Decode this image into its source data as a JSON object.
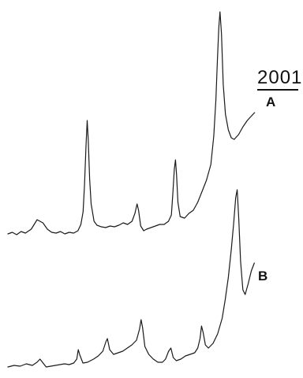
{
  "chart_data": {
    "type": "line",
    "title": "",
    "xlabel": "",
    "ylabel": "",
    "grid": false,
    "scale_label": "2001",
    "series": [
      {
        "name": "A",
        "points": [
          [
            0,
            0
          ],
          [
            3,
            2
          ],
          [
            6,
            -1
          ],
          [
            9,
            3
          ],
          [
            12,
            1
          ],
          [
            16,
            6
          ],
          [
            20,
            18
          ],
          [
            24,
            14
          ],
          [
            27,
            6
          ],
          [
            30,
            2
          ],
          [
            33,
            1
          ],
          [
            36,
            3
          ],
          [
            39,
            0
          ],
          [
            42,
            2
          ],
          [
            45,
            1
          ],
          [
            48,
            4
          ],
          [
            50,
            12
          ],
          [
            51.5,
            28
          ],
          [
            52.5,
            62
          ],
          [
            53.5,
            112
          ],
          [
            54.3,
            144
          ],
          [
            55,
            120
          ],
          [
            56,
            70
          ],
          [
            57,
            38
          ],
          [
            59,
            16
          ],
          [
            61,
            11
          ],
          [
            64,
            9
          ],
          [
            67,
            8
          ],
          [
            70,
            10
          ],
          [
            73,
            9
          ],
          [
            76,
            11
          ],
          [
            79,
            14
          ],
          [
            82,
            12
          ],
          [
            85,
            16
          ],
          [
            87,
            26
          ],
          [
            88.5,
            38
          ],
          [
            89.5,
            30
          ],
          [
            91,
            10
          ],
          [
            93,
            4
          ],
          [
            95,
            6
          ],
          [
            98,
            8
          ],
          [
            101,
            10
          ],
          [
            104,
            12
          ],
          [
            107,
            12
          ],
          [
            110,
            16
          ],
          [
            112,
            24
          ],
          [
            113,
            52
          ],
          [
            114,
            82
          ],
          [
            114.8,
            94
          ],
          [
            115.5,
            76
          ],
          [
            116.5,
            40
          ],
          [
            118,
            22
          ],
          [
            121,
            20
          ],
          [
            124,
            26
          ],
          [
            127,
            30
          ],
          [
            130,
            40
          ],
          [
            133,
            54
          ],
          [
            136,
            68
          ],
          [
            139,
            88
          ],
          [
            141,
            124
          ],
          [
            142.5,
            170
          ],
          [
            143.5,
            220
          ],
          [
            144.5,
            262
          ],
          [
            145.3,
            282
          ],
          [
            146.3,
            254
          ],
          [
            147.5,
            190
          ],
          [
            149,
            152
          ],
          [
            151,
            132
          ],
          [
            153,
            122
          ],
          [
            155,
            120
          ],
          [
            158,
            126
          ],
          [
            161,
            136
          ],
          [
            164,
            144
          ],
          [
            167,
            150
          ],
          [
            169,
            154
          ]
        ]
      },
      {
        "name": "B",
        "points": [
          [
            0,
            0
          ],
          [
            4,
            2
          ],
          [
            8,
            1
          ],
          [
            12,
            4
          ],
          [
            16,
            2
          ],
          [
            19,
            6
          ],
          [
            21,
            10
          ],
          [
            23,
            5
          ],
          [
            25,
            0
          ],
          [
            28,
            1
          ],
          [
            31,
            2
          ],
          [
            34,
            3
          ],
          [
            37,
            4
          ],
          [
            40,
            3
          ],
          [
            43,
            5
          ],
          [
            45,
            10
          ],
          [
            46,
            22
          ],
          [
            47,
            15
          ],
          [
            49,
            5
          ],
          [
            52,
            6
          ],
          [
            56,
            10
          ],
          [
            59,
            14
          ],
          [
            62,
            20
          ],
          [
            64,
            32
          ],
          [
            65,
            36
          ],
          [
            66.5,
            22
          ],
          [
            69,
            16
          ],
          [
            72,
            18
          ],
          [
            75,
            20
          ],
          [
            78,
            24
          ],
          [
            81,
            28
          ],
          [
            84,
            34
          ],
          [
            86,
            48
          ],
          [
            87,
            60
          ],
          [
            88,
            50
          ],
          [
            89.5,
            26
          ],
          [
            92,
            16
          ],
          [
            95,
            10
          ],
          [
            98,
            6
          ],
          [
            101,
            6
          ],
          [
            103,
            10
          ],
          [
            105,
            20
          ],
          [
            106.5,
            24
          ],
          [
            108,
            12
          ],
          [
            110,
            8
          ],
          [
            113,
            10
          ],
          [
            116,
            14
          ],
          [
            119,
            16
          ],
          [
            122,
            18
          ],
          [
            124,
            24
          ],
          [
            125.5,
            36
          ],
          [
            126.5,
            52
          ],
          [
            127.5,
            44
          ],
          [
            129,
            28
          ],
          [
            131,
            24
          ],
          [
            134,
            30
          ],
          [
            137,
            42
          ],
          [
            140,
            62
          ],
          [
            142,
            86
          ],
          [
            144,
            114
          ],
          [
            146,
            150
          ],
          [
            147.5,
            182
          ],
          [
            148.8,
            215
          ],
          [
            149.8,
            225
          ],
          [
            150.8,
            188
          ],
          [
            152,
            134
          ],
          [
            153.5,
            98
          ],
          [
            155,
            92
          ],
          [
            157,
            106
          ],
          [
            159,
            122
          ],
          [
            161,
            132
          ]
        ]
      }
    ]
  }
}
